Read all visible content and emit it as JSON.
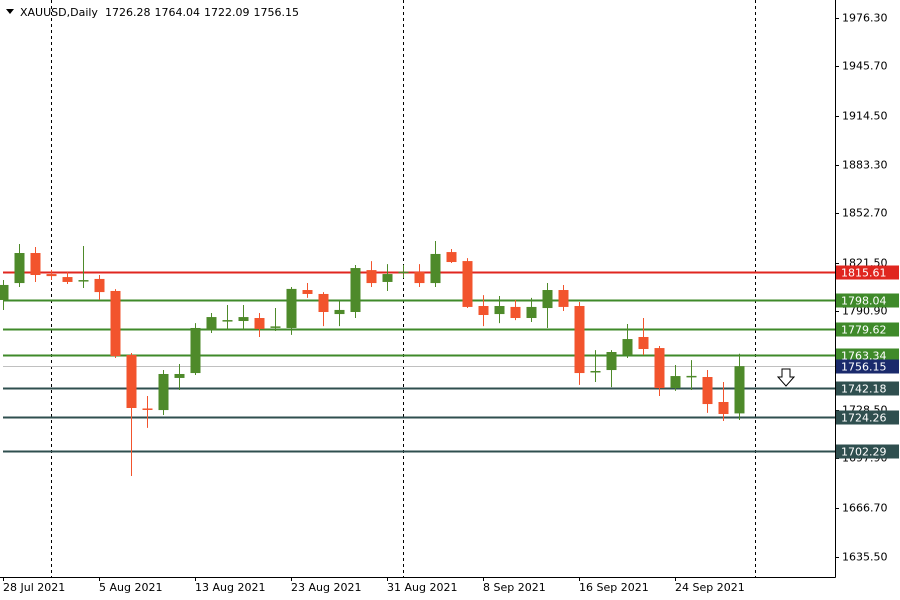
{
  "chart_data": {
    "type": "candlestick",
    "symbol": "XAUUSD,Daily",
    "categories": [
      "28 Jul 2021",
      null,
      null,
      null,
      null,
      null,
      "5 Aug 2021",
      null,
      null,
      null,
      null,
      null,
      "13 Aug 2021",
      null,
      null,
      null,
      null,
      null,
      "23 Aug 2021",
      null,
      null,
      null,
      null,
      null,
      "31 Aug 2021",
      null,
      null,
      null,
      null,
      null,
      "8 Sep 2021",
      null,
      null,
      null,
      null,
      null,
      "16 Sep 2021",
      null,
      null,
      null,
      null,
      null,
      "24 Sep 2021",
      null,
      null,
      null,
      null
    ],
    "open": [
      1798.0,
      1808.7,
      1827.7,
      1814.4,
      1812.5,
      1809.8,
      1811.3,
      1803.7,
      1763.2,
      1729.4,
      1728.4,
      1748.7,
      1751.8,
      1779.0,
      1785.0,
      1784.7,
      1786.6,
      1780.6,
      1780.3,
      1804.3,
      1801.8,
      1789.1,
      1790.4,
      1816.9,
      1809.4,
      1815.6,
      1815.7,
      1808.7,
      1828.3,
      1822.6,
      1794.2,
      1789.1,
      1793.6,
      1786.6,
      1792.9,
      1804.3,
      1794.2,
      1752.7,
      1753.7,
      1763.2,
      1774.6,
      1767.6,
      1742.3,
      1749.6,
      1749.3,
      1733.5,
      1726.28
    ],
    "high": [
      1810.6,
      1833.4,
      1831.5,
      1817.0,
      1815.7,
      1832.1,
      1813.8,
      1804.9,
      1764.5,
      1737.3,
      1753.7,
      1757.5,
      1783.4,
      1789.8,
      1794.8,
      1794.8,
      1789.8,
      1792.9,
      1806.2,
      1808.7,
      1803.0,
      1798.0,
      1820.1,
      1822.6,
      1820.7,
      1820.1,
      1820.7,
      1835.3,
      1830.2,
      1824.5,
      1801.1,
      1800.5,
      1798.0,
      1799.3,
      1808.7,
      1807.5,
      1796.7,
      1766.3,
      1766.3,
      1782.8,
      1786.6,
      1768.9,
      1756.9,
      1760.0,
      1753.7,
      1746.1,
      1764.04
    ],
    "low": [
      1791.7,
      1806.2,
      1809.4,
      1810.6,
      1808.1,
      1805.6,
      1798.0,
      1761.3,
      1686.7,
      1717.1,
      1725.3,
      1741.1,
      1750.6,
      1777.1,
      1779.0,
      1779.0,
      1774.6,
      1778.4,
      1775.9,
      1799.3,
      1781.5,
      1781.5,
      1786.6,
      1806.2,
      1803.7,
      1811.9,
      1806.2,
      1806.2,
      1821.4,
      1792.9,
      1781.5,
      1783.4,
      1785.3,
      1784.1,
      1780.3,
      1791.0,
      1744.3,
      1746.1,
      1742.9,
      1761.3,
      1763.2,
      1737.3,
      1740.5,
      1741.1,
      1726.6,
      1721.5,
      1722.09
    ],
    "close": [
      1807.5,
      1827.7,
      1813.8,
      1813.1,
      1809.4,
      1810.6,
      1803.0,
      1762.6,
      1729.7,
      1729.1,
      1751.2,
      1751.2,
      1780.3,
      1787.2,
      1785.3,
      1787.2,
      1779.7,
      1781.3,
      1805.0,
      1801.8,
      1790.4,
      1791.7,
      1818.2,
      1808.7,
      1814.4,
      1815.9,
      1808.7,
      1827.1,
      1822.0,
      1793.6,
      1788.5,
      1794.2,
      1786.6,
      1793.6,
      1804.3,
      1793.6,
      1751.8,
      1753.1,
      1765.1,
      1773.3,
      1767.0,
      1742.3,
      1749.9,
      1750.0,
      1732.2,
      1725.9,
      1756.15
    ],
    "up_color": "#4e8a2a",
    "down_color": "#f2542d",
    "ylim": [
      1622.84,
      1987.68
    ],
    "yticks": [
      {
        "value": 1976.3,
        "label": "1976.30"
      },
      {
        "value": 1945.7,
        "label": "1945.70"
      },
      {
        "value": 1914.5,
        "label": "1914.50"
      },
      {
        "value": 1883.3,
        "label": "1883.30"
      },
      {
        "value": 1852.7,
        "label": "1852.70"
      },
      {
        "value": 1821.5,
        "label": "1821.50"
      },
      {
        "value": 1790.9,
        "label": "1790.90"
      },
      {
        "value": 1728.5,
        "label": "1728.50"
      },
      {
        "value": 1697.9,
        "label": "1697.90"
      },
      {
        "value": 1666.7,
        "label": "1666.70"
      },
      {
        "value": 1635.5,
        "label": "1635.50"
      }
    ],
    "levels": [
      {
        "value": 1815.61,
        "line_color": "#e0261f",
        "box_color": "#e0261f"
      },
      {
        "value": 1798.04,
        "line_color": "#3f8a2a",
        "box_color": "#3f8a2a"
      },
      {
        "value": 1779.62,
        "line_color": "#3f8a2a",
        "box_color": "#3f8a2a"
      },
      {
        "value": 1763.34,
        "line_color": "#3f8a2a",
        "box_color": "#3f8a2a"
      },
      {
        "value": 1756.15,
        "line_color": "#c0c0c0",
        "box_color": "#1a2a6c"
      },
      {
        "value": 1742.18,
        "line_color": "#2f4f4f",
        "box_color": "#2f4f4f"
      },
      {
        "value": 1724.26,
        "line_color": "#2f4f4f",
        "box_color": "#2f4f4f"
      },
      {
        "value": 1702.29,
        "line_color": "#2f4f4f",
        "box_color": "#2f4f4f"
      }
    ]
  }
}
